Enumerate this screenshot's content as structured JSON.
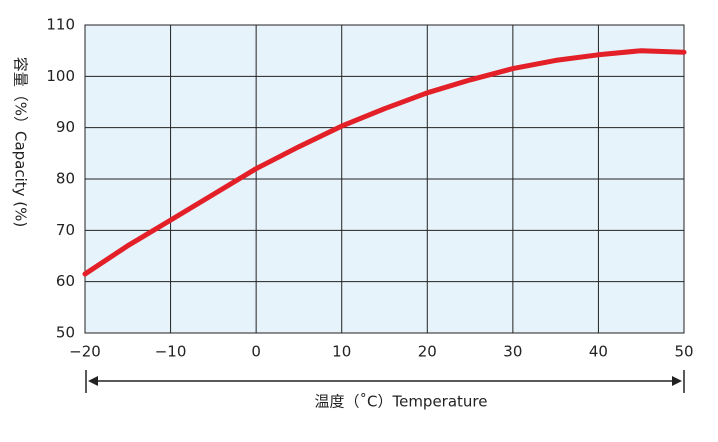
{
  "chart_data": {
    "type": "line",
    "y_label": "容量（%）Capacity (%)",
    "x_label": "温度（˚C）Temperature",
    "x": [
      -20,
      -15,
      -10,
      -5,
      0,
      5,
      10,
      15,
      20,
      25,
      30,
      35,
      40,
      45,
      50
    ],
    "series": [
      {
        "name": "Capacity",
        "color": "#e32028",
        "values": [
          61.5,
          67,
          72,
          77,
          82,
          86.3,
          90.3,
          93.7,
          96.8,
          99.3,
          101.5,
          103.1,
          104.2,
          105,
          104.7
        ]
      }
    ],
    "xlim": [
      -20,
      50
    ],
    "xticks": [
      {
        "value": -20,
        "label": "−20"
      },
      {
        "value": -10,
        "label": "−10"
      },
      0,
      10,
      20,
      30,
      40,
      50
    ],
    "ylim": [
      50,
      110
    ],
    "yticks": [
      50,
      60,
      70,
      80,
      90,
      100,
      110
    ],
    "grid": true,
    "background": "#e6f3fb"
  }
}
